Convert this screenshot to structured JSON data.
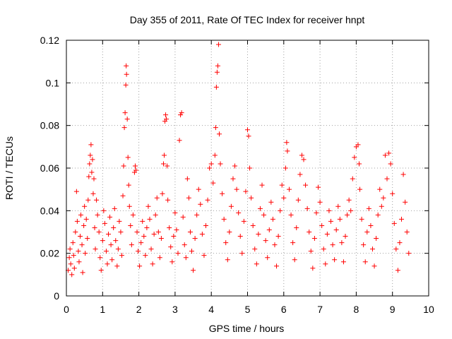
{
  "chart_data": {
    "type": "scatter",
    "title": "Day 355 of 2011, Rate Of TEC Index for receiver hnpt",
    "xlabel": "GPS time / hours",
    "ylabel": "ROTI / TECUs",
    "xlim": [
      0,
      10
    ],
    "ylim": [
      0,
      0.12
    ],
    "x_ticks": [
      "0",
      "1",
      "2",
      "3",
      "4",
      "5",
      "6",
      "7",
      "8",
      "9",
      "10"
    ],
    "y_ticks": [
      "0",
      "0.02",
      "0.04",
      "0.06",
      "0.08",
      "0.1",
      "0.12"
    ],
    "grid": true,
    "marker": "+",
    "color": "#ff0000",
    "series": [
      {
        "points": [
          [
            0.05,
            0.012
          ],
          [
            0.08,
            0.018
          ],
          [
            0.1,
            0.022
          ],
          [
            0.12,
            0.015
          ],
          [
            0.15,
            0.01
          ],
          [
            0.18,
            0.025
          ],
          [
            0.2,
            0.019
          ],
          [
            0.22,
            0.013
          ],
          [
            0.25,
            0.03
          ],
          [
            0.28,
            0.049
          ],
          [
            0.3,
            0.035
          ],
          [
            0.33,
            0.021
          ],
          [
            0.35,
            0.016
          ],
          [
            0.38,
            0.028
          ],
          [
            0.4,
            0.038
          ],
          [
            0.43,
            0.024
          ],
          [
            0.45,
            0.011
          ],
          [
            0.48,
            0.033
          ],
          [
            0.5,
            0.042
          ],
          [
            0.52,
            0.02
          ],
          [
            0.55,
            0.036
          ],
          [
            0.58,
            0.027
          ],
          [
            0.6,
            0.045
          ],
          [
            0.62,
            0.056
          ],
          [
            0.64,
            0.062
          ],
          [
            0.66,
            0.066
          ],
          [
            0.68,
            0.071
          ],
          [
            0.7,
            0.058
          ],
          [
            0.72,
            0.064
          ],
          [
            0.74,
            0.048
          ],
          [
            0.76,
            0.055
          ],
          [
            0.78,
            0.032
          ],
          [
            0.8,
            0.022
          ],
          [
            0.83,
            0.045
          ],
          [
            0.86,
            0.038
          ],
          [
            0.9,
            0.03
          ],
          [
            0.93,
            0.018
          ],
          [
            0.96,
            0.012
          ],
          [
            1.0,
            0.026
          ],
          [
            1.03,
            0.04
          ],
          [
            1.06,
            0.034
          ],
          [
            1.1,
            0.021
          ],
          [
            1.13,
            0.015
          ],
          [
            1.16,
            0.029
          ],
          [
            1.2,
            0.037
          ],
          [
            1.23,
            0.024
          ],
          [
            1.26,
            0.017
          ],
          [
            1.3,
            0.032
          ],
          [
            1.33,
            0.041
          ],
          [
            1.36,
            0.026
          ],
          [
            1.4,
            0.014
          ],
          [
            1.43,
            0.022
          ],
          [
            1.46,
            0.035
          ],
          [
            1.5,
            0.03
          ],
          [
            1.53,
            0.019
          ],
          [
            1.56,
            0.047
          ],
          [
            1.58,
            0.061
          ],
          [
            1.6,
            0.079
          ],
          [
            1.62,
            0.086
          ],
          [
            1.64,
            0.099
          ],
          [
            1.65,
            0.108
          ],
          [
            1.66,
            0.104
          ],
          [
            1.68,
            0.083
          ],
          [
            1.7,
            0.065
          ],
          [
            1.72,
            0.052
          ],
          [
            1.74,
            0.042
          ],
          [
            1.77,
            0.033
          ],
          [
            1.8,
            0.024
          ],
          [
            1.84,
            0.038
          ],
          [
            1.88,
            0.058
          ],
          [
            1.9,
            0.061
          ],
          [
            1.92,
            0.059
          ],
          [
            1.95,
            0.03
          ],
          [
            1.98,
            0.021
          ],
          [
            2.02,
            0.014
          ],
          [
            2.06,
            0.025
          ],
          [
            2.1,
            0.035
          ],
          [
            2.14,
            0.028
          ],
          [
            2.18,
            0.019
          ],
          [
            2.22,
            0.032
          ],
          [
            2.26,
            0.042
          ],
          [
            2.3,
            0.036
          ],
          [
            2.34,
            0.022
          ],
          [
            2.38,
            0.015
          ],
          [
            2.42,
            0.029
          ],
          [
            2.46,
            0.038
          ],
          [
            2.5,
            0.046
          ],
          [
            2.54,
            0.03
          ],
          [
            2.58,
            0.018
          ],
          [
            2.62,
            0.027
          ],
          [
            2.65,
            0.048
          ],
          [
            2.68,
            0.062
          ],
          [
            2.7,
            0.066
          ],
          [
            2.72,
            0.082
          ],
          [
            2.74,
            0.085
          ],
          [
            2.76,
            0.083
          ],
          [
            2.78,
            0.061
          ],
          [
            2.8,
            0.045
          ],
          [
            2.84,
            0.032
          ],
          [
            2.88,
            0.023
          ],
          [
            2.92,
            0.016
          ],
          [
            2.96,
            0.028
          ],
          [
            3.0,
            0.039
          ],
          [
            3.04,
            0.031
          ],
          [
            3.08,
            0.02
          ],
          [
            3.12,
            0.073
          ],
          [
            3.15,
            0.085
          ],
          [
            3.18,
            0.086
          ],
          [
            3.22,
            0.037
          ],
          [
            3.26,
            0.024
          ],
          [
            3.3,
            0.018
          ],
          [
            3.34,
            0.055
          ],
          [
            3.38,
            0.046
          ],
          [
            3.42,
            0.03
          ],
          [
            3.46,
            0.021
          ],
          [
            3.5,
            0.012
          ],
          [
            3.55,
            0.027
          ],
          [
            3.6,
            0.038
          ],
          [
            3.65,
            0.05
          ],
          [
            3.7,
            0.043
          ],
          [
            3.75,
            0.029
          ],
          [
            3.8,
            0.019
          ],
          [
            3.85,
            0.033
          ],
          [
            3.9,
            0.045
          ],
          [
            3.95,
            0.06
          ],
          [
            4.0,
            0.062
          ],
          [
            4.05,
            0.053
          ],
          [
            4.1,
            0.066
          ],
          [
            4.12,
            0.079
          ],
          [
            4.14,
            0.098
          ],
          [
            4.16,
            0.105
          ],
          [
            4.18,
            0.108
          ],
          [
            4.2,
            0.118
          ],
          [
            4.22,
            0.076
          ],
          [
            4.25,
            0.062
          ],
          [
            4.3,
            0.048
          ],
          [
            4.35,
            0.036
          ],
          [
            4.4,
            0.025
          ],
          [
            4.45,
            0.017
          ],
          [
            4.5,
            0.03
          ],
          [
            4.55,
            0.042
          ],
          [
            4.6,
            0.055
          ],
          [
            4.65,
            0.061
          ],
          [
            4.7,
            0.05
          ],
          [
            4.75,
            0.039
          ],
          [
            4.8,
            0.028
          ],
          [
            4.85,
            0.02
          ],
          [
            4.9,
            0.035
          ],
          [
            4.95,
            0.049
          ],
          [
            5.0,
            0.078
          ],
          [
            5.03,
            0.075
          ],
          [
            5.06,
            0.06
          ],
          [
            5.1,
            0.046
          ],
          [
            5.15,
            0.033
          ],
          [
            5.2,
            0.022
          ],
          [
            5.25,
            0.015
          ],
          [
            5.3,
            0.029
          ],
          [
            5.35,
            0.041
          ],
          [
            5.4,
            0.052
          ],
          [
            5.45,
            0.038
          ],
          [
            5.5,
            0.026
          ],
          [
            5.55,
            0.018
          ],
          [
            5.6,
            0.031
          ],
          [
            5.65,
            0.044
          ],
          [
            5.7,
            0.036
          ],
          [
            5.75,
            0.024
          ],
          [
            5.8,
            0.014
          ],
          [
            5.85,
            0.028
          ],
          [
            5.9,
            0.04
          ],
          [
            5.95,
            0.052
          ],
          [
            6.0,
            0.046
          ],
          [
            6.05,
            0.06
          ],
          [
            6.08,
            0.072
          ],
          [
            6.1,
            0.068
          ],
          [
            6.15,
            0.05
          ],
          [
            6.2,
            0.038
          ],
          [
            6.25,
            0.025
          ],
          [
            6.3,
            0.017
          ],
          [
            6.35,
            0.032
          ],
          [
            6.4,
            0.045
          ],
          [
            6.45,
            0.057
          ],
          [
            6.5,
            0.066
          ],
          [
            6.55,
            0.064
          ],
          [
            6.6,
            0.052
          ],
          [
            6.65,
            0.041
          ],
          [
            6.7,
            0.03
          ],
          [
            6.75,
            0.021
          ],
          [
            6.8,
            0.013
          ],
          [
            6.85,
            0.027
          ],
          [
            6.9,
            0.039
          ],
          [
            6.95,
            0.051
          ],
          [
            7.0,
            0.044
          ],
          [
            7.05,
            0.033
          ],
          [
            7.1,
            0.022
          ],
          [
            7.15,
            0.015
          ],
          [
            7.2,
            0.029
          ],
          [
            7.25,
            0.04
          ],
          [
            7.3,
            0.035
          ],
          [
            7.35,
            0.024
          ],
          [
            7.4,
            0.017
          ],
          [
            7.45,
            0.031
          ],
          [
            7.5,
            0.042
          ],
          [
            7.55,
            0.036
          ],
          [
            7.6,
            0.025
          ],
          [
            7.65,
            0.016
          ],
          [
            7.7,
            0.028
          ],
          [
            7.75,
            0.038
          ],
          [
            7.8,
            0.045
          ],
          [
            7.85,
            0.04
          ],
          [
            7.9,
            0.055
          ],
          [
            7.95,
            0.065
          ],
          [
            8.0,
            0.07
          ],
          [
            8.05,
            0.071
          ],
          [
            8.08,
            0.062
          ],
          [
            8.1,
            0.05
          ],
          [
            8.15,
            0.036
          ],
          [
            8.2,
            0.024
          ],
          [
            8.25,
            0.016
          ],
          [
            8.3,
            0.03
          ],
          [
            8.35,
            0.041
          ],
          [
            8.4,
            0.033
          ],
          [
            8.45,
            0.022
          ],
          [
            8.5,
            0.014
          ],
          [
            8.55,
            0.027
          ],
          [
            8.6,
            0.038
          ],
          [
            8.65,
            0.05
          ],
          [
            8.7,
            0.042
          ],
          [
            8.75,
            0.046
          ],
          [
            8.8,
            0.066
          ],
          [
            8.85,
            0.055
          ],
          [
            8.9,
            0.067
          ],
          [
            8.95,
            0.062
          ],
          [
            9.0,
            0.048
          ],
          [
            9.05,
            0.034
          ],
          [
            9.1,
            0.022
          ],
          [
            9.15,
            0.012
          ],
          [
            9.2,
            0.025
          ],
          [
            9.25,
            0.036
          ],
          [
            9.3,
            0.057
          ],
          [
            9.35,
            0.044
          ],
          [
            9.4,
            0.03
          ],
          [
            9.45,
            0.02
          ]
        ]
      }
    ]
  }
}
